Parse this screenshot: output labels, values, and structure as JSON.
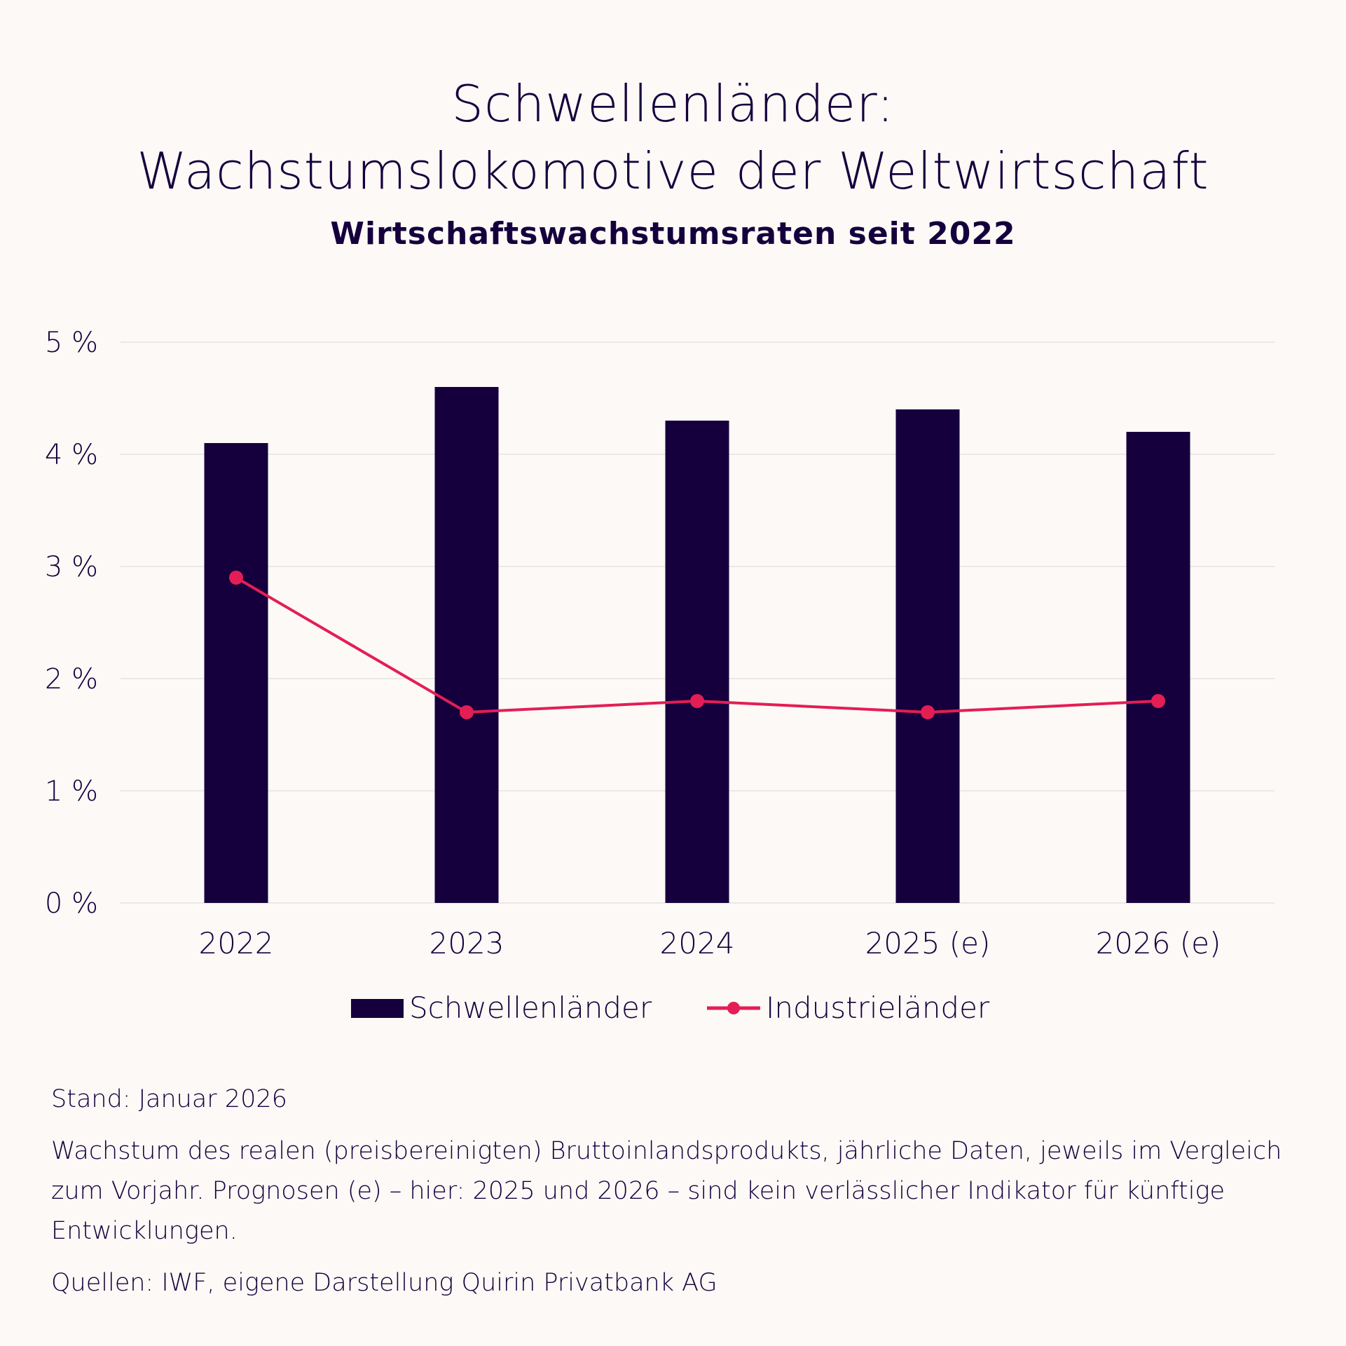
{
  "header": {
    "title_line1": "Schwellenländer:",
    "title_line2": "Wachstumslokomotive der Weltwirtschaft",
    "subtitle": "Wirtschaftswachstumsraten seit 2022"
  },
  "colors": {
    "background": "#fcf9f6",
    "text": "#15003d",
    "bar": "#15003d",
    "line": "#e31e55",
    "grid": "#e6e3e0"
  },
  "chart_data": {
    "type": "bar",
    "title": "Wirtschaftswachstumsraten seit 2022",
    "xlabel": "",
    "ylabel": "",
    "categories": [
      "2022",
      "2023",
      "2024",
      "2025 (e)",
      "2026 (e)"
    ],
    "series": [
      {
        "name": "Schwellenländer",
        "type": "bar",
        "values": [
          4.1,
          4.6,
          4.3,
          4.4,
          4.2
        ]
      },
      {
        "name": "Industrieländer",
        "type": "line",
        "values": [
          2.9,
          1.7,
          1.8,
          1.7,
          1.8
        ]
      }
    ],
    "ylim": [
      0,
      5
    ],
    "yticks": [
      0,
      1,
      2,
      3,
      4,
      5
    ],
    "ytick_labels": [
      "0 %",
      "1 %",
      "2 %",
      "3 %",
      "4 %",
      "5 %"
    ],
    "grid": true,
    "legend": {
      "position": "bottom-center",
      "entries": [
        "Schwellenländer",
        "Industrieländer"
      ]
    }
  },
  "footer": {
    "stand": "Stand: Januar 2026",
    "note": "Wachstum des realen (preisbereinigten) Bruttoinlandsprodukts, jährliche Daten, jeweils im Vergleich zum Vorjahr. Prognosen (e) – hier: 2025 und 2026 – sind kein verlässlicher Indikator für künftige Entwicklungen.",
    "sources": "Quellen: IWF, eigene Darstellung Quirin Privatbank AG"
  }
}
